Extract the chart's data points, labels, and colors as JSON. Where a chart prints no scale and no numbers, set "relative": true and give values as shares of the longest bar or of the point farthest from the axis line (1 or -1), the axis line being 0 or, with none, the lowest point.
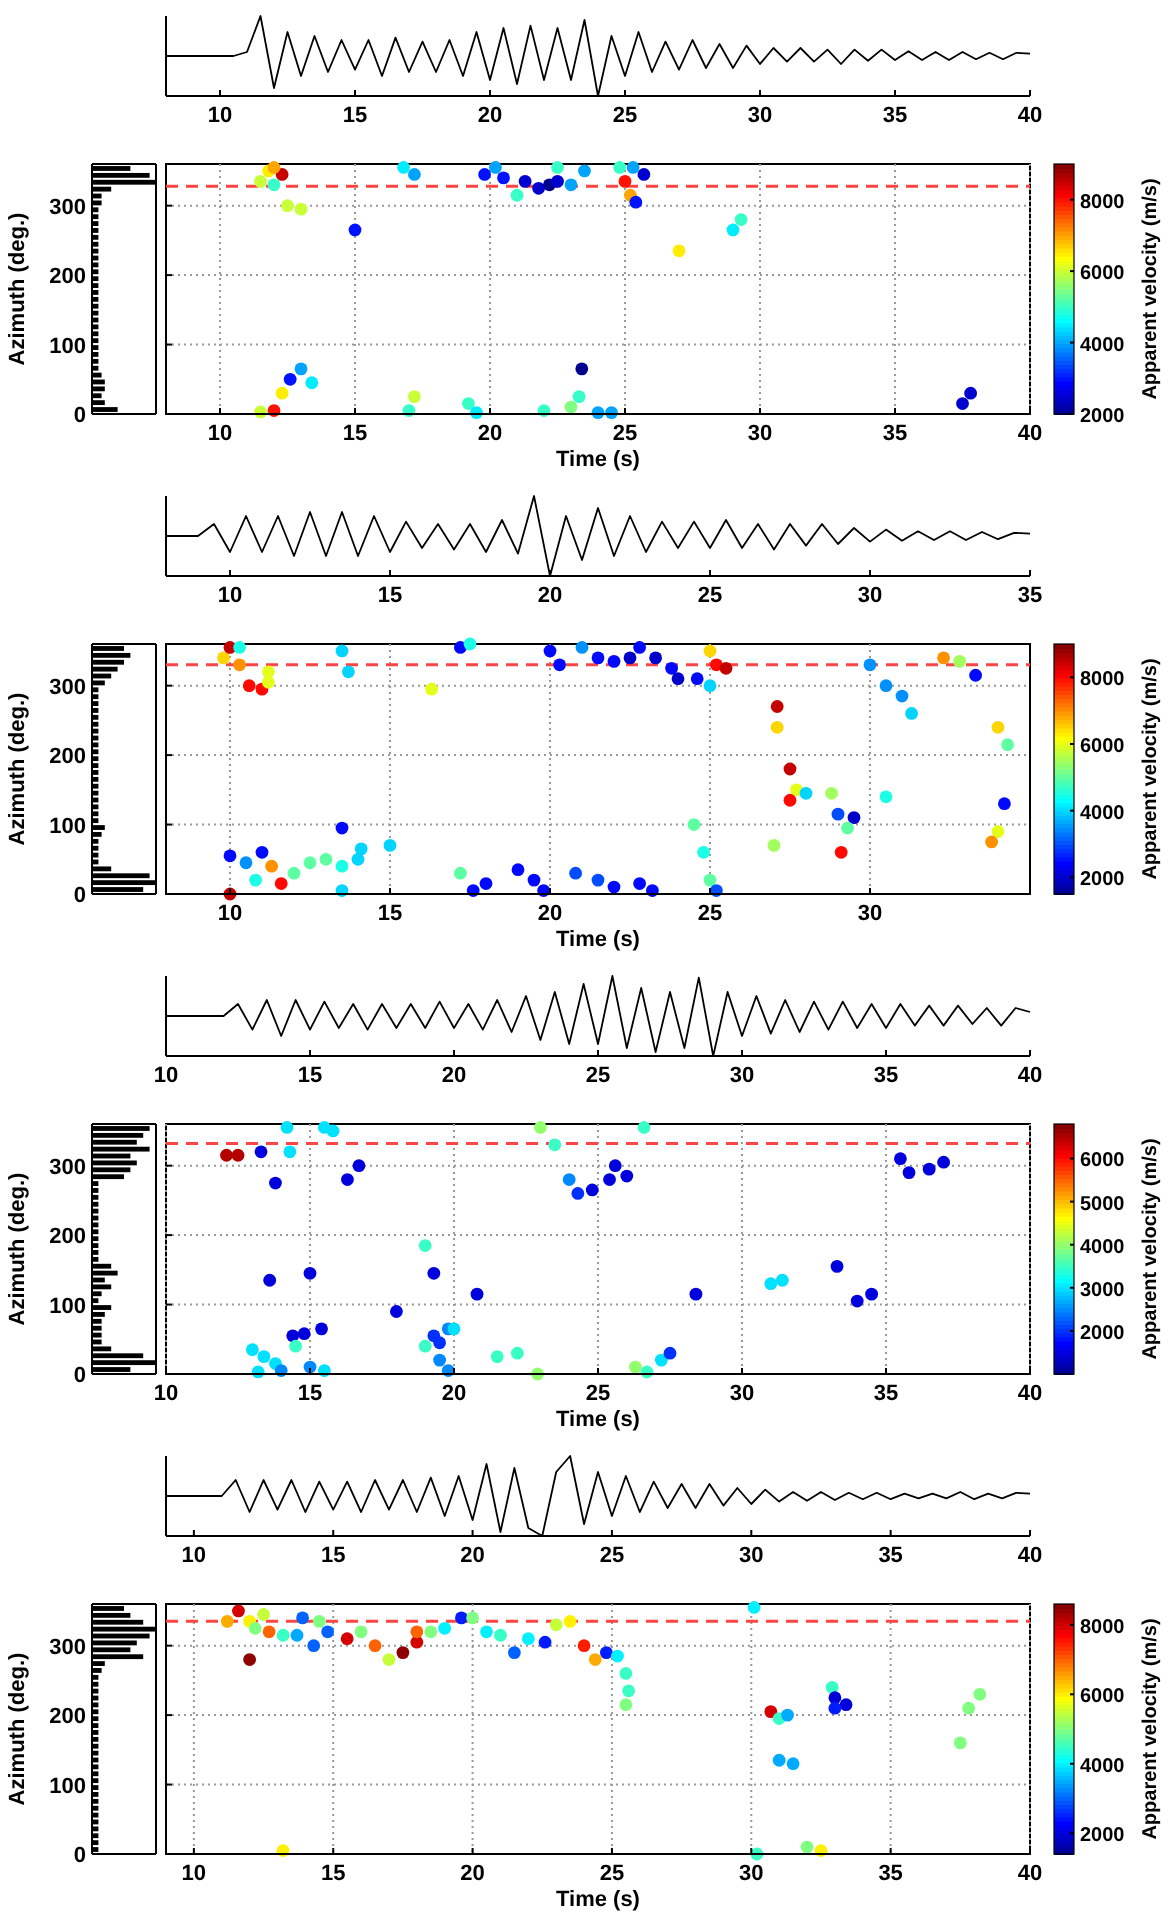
{
  "chart_data": [
    {
      "type": "line",
      "relative": true,
      "xlim": [
        8,
        40
      ],
      "xticks": [
        10,
        15,
        20,
        25,
        30,
        35,
        40
      ],
      "x": [
        8,
        9,
        10,
        10.5,
        11,
        11.5,
        12,
        12.5,
        13,
        13.5,
        14,
        14.5,
        15,
        15.5,
        16,
        16.5,
        17,
        17.5,
        18,
        18.5,
        19,
        19.5,
        20,
        20.5,
        21,
        21.5,
        22,
        22.5,
        23,
        23.5,
        24,
        24.5,
        25,
        25.5,
        26,
        26.5,
        27,
        27.5,
        28,
        28.5,
        29,
        29.5,
        30,
        30.5,
        31,
        31.5,
        32,
        32.5,
        33,
        33.5,
        34,
        34.5,
        35,
        35.5,
        36,
        36.5,
        37,
        37.5,
        38,
        38.5,
        39,
        39.5,
        40
      ],
      "series": [
        {
          "color": "#000000",
          "values": [
            0.5,
            0.5,
            0.5,
            0.5,
            0.55,
            1,
            0.1,
            0.8,
            0.25,
            0.75,
            0.3,
            0.7,
            0.33,
            0.7,
            0.25,
            0.73,
            0.3,
            0.68,
            0.3,
            0.7,
            0.25,
            0.8,
            0.2,
            0.85,
            0.15,
            0.88,
            0.2,
            0.85,
            0.2,
            0.95,
            0,
            0.75,
            0.25,
            0.8,
            0.3,
            0.68,
            0.33,
            0.7,
            0.35,
            0.65,
            0.35,
            0.63,
            0.4,
            0.6,
            0.43,
            0.6,
            0.43,
            0.58,
            0.4,
            0.58,
            0.44,
            0.58,
            0.45,
            0.56,
            0.45,
            0.55,
            0.45,
            0.55,
            0.46,
            0.54,
            0.46,
            0.54,
            0.53
          ]
        }
      ]
    },
    {
      "type": "bar",
      "orientation": "horizontal",
      "relative": true,
      "color": "#000000",
      "categories": [
        null,
        null,
        null,
        null,
        null,
        null,
        null,
        null,
        null,
        null,
        null,
        null,
        null,
        null,
        null,
        null,
        null,
        null,
        null,
        null,
        null,
        null,
        null,
        null,
        null,
        null,
        null,
        null,
        null,
        null,
        null,
        null,
        null,
        null,
        null,
        null
      ],
      "values": [
        0.6,
        0.9,
        1.0,
        0.3,
        0.15,
        0.15,
        0.1,
        0.1,
        0.1,
        0.1,
        0.1,
        0.1,
        0.1,
        0.1,
        0.1,
        0.1,
        0.1,
        0.1,
        0.1,
        0.1,
        0.1,
        0.1,
        0.1,
        0.1,
        0.1,
        0.1,
        0.1,
        0.1,
        0.1,
        0.1,
        0.15,
        0.2,
        0.2,
        0.15,
        0.2,
        0.4
      ]
    },
    {
      "type": "scatter",
      "xlabel": "Time (s)",
      "ylabel": "Azimuth (deg.)",
      "clabel": "Apparent velocity (m/s)",
      "grid": true,
      "marker": "circle",
      "xlim": [
        8,
        40
      ],
      "xticks": [
        10,
        15,
        20,
        25,
        30,
        35,
        40
      ],
      "ylim": [
        0,
        360
      ],
      "yticks": [
        0,
        100,
        200,
        300
      ],
      "clim": [
        2000,
        9000
      ],
      "cticks": [
        2000,
        4000,
        6000,
        8000
      ],
      "ref_lines": [
        {
          "axis": "y",
          "value": 328,
          "color": "#ff4444",
          "line_style": "dashed"
        }
      ],
      "x": [
        11.5,
        11.8,
        12.0,
        12.3,
        12.0,
        12.5,
        13.0,
        12.0,
        12.3,
        12.6,
        13.0,
        13.4,
        11.5,
        15.0,
        16.8,
        17.2,
        17.0,
        17.2,
        19.2,
        19.5,
        19.8,
        20.2,
        20.5,
        21.3,
        21.0,
        21.8,
        22.2,
        22.5,
        22.5,
        23.0,
        23.5,
        22.0,
        23.0,
        23.3,
        23.4,
        24.0,
        24.5,
        24.8,
        25.0,
        25.2,
        25.4,
        25.7,
        25.3,
        27.0,
        29.0,
        29.3,
        37.5,
        37.8
      ],
      "values": [
        335,
        350,
        330,
        345,
        355,
        300,
        295,
        5,
        30,
        50,
        65,
        45,
        3,
        265,
        355,
        345,
        5,
        25,
        15,
        2,
        345,
        355,
        340,
        335,
        315,
        325,
        330,
        335,
        355,
        330,
        350,
        5,
        10,
        25,
        65,
        2,
        2,
        355,
        335,
        315,
        305,
        345,
        355,
        235,
        265,
        280,
        15,
        30
      ],
      "cvalues": [
        6000,
        6500,
        5000,
        8500,
        7000,
        6000,
        6000,
        8000,
        6500,
        3000,
        4000,
        4500,
        6000,
        3000,
        4500,
        4000,
        5000,
        6000,
        5000,
        4500,
        3000,
        4000,
        3000,
        2500,
        5000,
        2500,
        2000,
        2500,
        5000,
        4000,
        4000,
        5000,
        5500,
        5000,
        2000,
        4000,
        4000,
        5000,
        8000,
        7000,
        3000,
        2500,
        4000,
        6500,
        4500,
        5000,
        2500,
        2500
      ]
    },
    {
      "type": "line",
      "relative": true,
      "xlim": [
        8,
        35
      ],
      "xticks": [
        10,
        15,
        20,
        25,
        30,
        35
      ],
      "x": [
        8,
        9,
        9.5,
        10,
        10.5,
        11,
        11.5,
        12,
        12.5,
        13,
        13.5,
        14,
        14.5,
        15,
        15.5,
        16,
        16.5,
        17,
        17.5,
        18,
        18.5,
        19,
        19.5,
        20,
        20.5,
        21,
        21.5,
        22,
        22.5,
        23,
        23.5,
        24,
        24.5,
        25,
        25.5,
        26,
        26.5,
        27,
        27.5,
        28,
        28.5,
        29,
        29.5,
        30,
        30.5,
        31,
        31.5,
        32,
        32.5,
        33,
        33.5,
        34,
        34.5,
        35
      ],
      "series": [
        {
          "color": "#000000",
          "values": [
            0.5,
            0.5,
            0.65,
            0.3,
            0.75,
            0.3,
            0.75,
            0.25,
            0.8,
            0.25,
            0.8,
            0.25,
            0.75,
            0.3,
            0.68,
            0.35,
            0.65,
            0.33,
            0.65,
            0.3,
            0.7,
            0.28,
            1,
            0,
            0.75,
            0.2,
            0.85,
            0.25,
            0.75,
            0.3,
            0.68,
            0.35,
            0.68,
            0.35,
            0.7,
            0.35,
            0.65,
            0.33,
            0.65,
            0.38,
            0.65,
            0.4,
            0.6,
            0.43,
            0.58,
            0.44,
            0.56,
            0.45,
            0.56,
            0.45,
            0.55,
            0.46,
            0.54,
            0.53
          ]
        }
      ]
    },
    {
      "type": "bar",
      "orientation": "horizontal",
      "relative": true,
      "color": "#000000",
      "categories": [
        null,
        null,
        null,
        null,
        null,
        null,
        null,
        null,
        null,
        null,
        null,
        null,
        null,
        null,
        null,
        null,
        null,
        null,
        null,
        null,
        null,
        null,
        null,
        null,
        null,
        null,
        null,
        null,
        null,
        null,
        null,
        null,
        null,
        null,
        null,
        null
      ],
      "values": [
        0.5,
        0.6,
        0.5,
        0.4,
        0.3,
        0.2,
        0.1,
        0.1,
        0.1,
        0.1,
        0.1,
        0.1,
        0.1,
        0.1,
        0.1,
        0.1,
        0.1,
        0.1,
        0.1,
        0.1,
        0.1,
        0.1,
        0.1,
        0.1,
        0.1,
        0.1,
        0.2,
        0.15,
        0.1,
        0.1,
        0.1,
        0.1,
        0.3,
        0.9,
        1.0,
        0.8
      ]
    },
    {
      "type": "scatter",
      "xlabel": "Time (s)",
      "ylabel": "Azimuth (deg.)",
      "clabel": "Apparent velocity (m/s)",
      "grid": true,
      "marker": "circle",
      "xlim": [
        8,
        35
      ],
      "xticks": [
        10,
        15,
        20,
        25,
        30
      ],
      "ylim": [
        0,
        360
      ],
      "yticks": [
        0,
        100,
        200,
        300
      ],
      "clim": [
        1500,
        9000
      ],
      "cticks": [
        2000,
        4000,
        6000,
        8000
      ],
      "ref_lines": [
        {
          "axis": "y",
          "value": 330,
          "color": "#ff4444",
          "line_style": "dashed"
        }
      ],
      "x": [
        9.8,
        10.0,
        10.3,
        10.6,
        11.0,
        11.2,
        11.2,
        10.3,
        10.0,
        10.0,
        10.5,
        10.8,
        11.0,
        11.3,
        11.6,
        12.0,
        12.5,
        13.0,
        13.5,
        14.0,
        14.1,
        13.5,
        13.5,
        15.0,
        13.5,
        13.7,
        16.3,
        17.2,
        17.5,
        17.2,
        17.6,
        18.0,
        19.0,
        19.5,
        19.8,
        20.0,
        20.3,
        20.8,
        21.5,
        22.0,
        22.8,
        23.2,
        21.0,
        21.5,
        22.0,
        22.5,
        22.8,
        23.3,
        23.8,
        24.0,
        24.6,
        24.5,
        24.8,
        25.0,
        25.2,
        25.0,
        25.2,
        25.5,
        25.0,
        27.1,
        27.1,
        27.0,
        27.5,
        27.7,
        27.5,
        28.0,
        28.8,
        29.0,
        29.5,
        29.3,
        29.1,
        30.0,
        30.5,
        31.0,
        31.3,
        30.5,
        32.3,
        32.8,
        33.3,
        34.0,
        34.3,
        34.2,
        34.0,
        33.8
      ],
      "values": [
        340,
        355,
        330,
        300,
        295,
        320,
        305,
        355,
        0,
        55,
        45,
        20,
        60,
        40,
        15,
        30,
        45,
        50,
        40,
        50,
        65,
        5,
        95,
        70,
        350,
        320,
        295,
        355,
        360,
        30,
        5,
        15,
        35,
        20,
        5,
        350,
        330,
        30,
        20,
        10,
        15,
        5,
        355,
        340,
        335,
        340,
        355,
        340,
        325,
        310,
        310,
        100,
        60,
        20,
        5,
        350,
        330,
        325,
        300,
        270,
        240,
        70,
        180,
        150,
        135,
        145,
        145,
        115,
        110,
        95,
        60,
        330,
        300,
        285,
        260,
        140,
        340,
        335,
        315,
        240,
        215,
        130,
        90,
        75
      ],
      "cvalues": [
        6500,
        8500,
        7000,
        8000,
        8000,
        6000,
        6000,
        4500,
        8500,
        2500,
        3500,
        4500,
        2500,
        7000,
        8000,
        5000,
        5000,
        5000,
        4500,
        4000,
        4000,
        4000,
        2500,
        4000,
        4000,
        4000,
        6000,
        2500,
        4500,
        5000,
        2500,
        2500,
        2500,
        2500,
        2500,
        2500,
        2500,
        3000,
        3000,
        2500,
        2500,
        2500,
        3500,
        2500,
        2500,
        2000,
        2500,
        2000,
        2500,
        2000,
        2500,
        5000,
        4500,
        5000,
        3000,
        6500,
        8000,
        8500,
        4000,
        8500,
        6500,
        5500,
        8500,
        6000,
        8000,
        4000,
        5500,
        3000,
        2000,
        5000,
        8000,
        3500,
        3500,
        3500,
        4000,
        4500,
        7000,
        5500,
        2500,
        6500,
        5000,
        2500,
        6000,
        7000
      ]
    },
    {
      "type": "line",
      "relative": true,
      "xlim": [
        10,
        40
      ],
      "xticks": [
        10,
        15,
        20,
        25,
        30,
        35,
        40
      ],
      "x": [
        10,
        11,
        12,
        12.5,
        13,
        13.5,
        14,
        14.5,
        15,
        15.5,
        16,
        16.5,
        17,
        17.5,
        18,
        18.5,
        19,
        19.5,
        20,
        20.5,
        21,
        21.5,
        22,
        22.5,
        23,
        23.5,
        24,
        24.5,
        25,
        25.5,
        26,
        26.5,
        27,
        27.5,
        28,
        28.5,
        29,
        29.5,
        30,
        30.5,
        31,
        31.5,
        32,
        32.5,
        33,
        33.5,
        34,
        34.5,
        35,
        35.5,
        36,
        36.5,
        37,
        37.5,
        38,
        38.5,
        39,
        39.5,
        40
      ],
      "series": [
        {
          "color": "#000000",
          "values": [
            0.5,
            0.5,
            0.5,
            0.65,
            0.33,
            0.7,
            0.25,
            0.7,
            0.33,
            0.68,
            0.35,
            0.65,
            0.33,
            0.65,
            0.35,
            0.65,
            0.35,
            0.68,
            0.35,
            0.65,
            0.33,
            0.7,
            0.3,
            0.75,
            0.2,
            0.8,
            0.15,
            0.9,
            0.15,
            1,
            0.1,
            0.85,
            0.05,
            0.8,
            0.1,
            0.98,
            0,
            0.8,
            0.25,
            0.75,
            0.28,
            0.7,
            0.3,
            0.68,
            0.33,
            0.68,
            0.35,
            0.65,
            0.35,
            0.65,
            0.38,
            0.63,
            0.38,
            0.63,
            0.4,
            0.6,
            0.38,
            0.6,
            0.55
          ]
        }
      ]
    },
    {
      "type": "bar",
      "orientation": "horizontal",
      "relative": true,
      "color": "#000000",
      "categories": [
        null,
        null,
        null,
        null,
        null,
        null,
        null,
        null,
        null,
        null,
        null,
        null,
        null,
        null,
        null,
        null,
        null,
        null,
        null,
        null,
        null,
        null,
        null,
        null,
        null,
        null,
        null,
        null,
        null,
        null,
        null,
        null,
        null,
        null,
        null,
        null
      ],
      "values": [
        0.9,
        0.8,
        0.7,
        0.9,
        0.6,
        0.7,
        0.6,
        0.5,
        0.1,
        0.1,
        0.1,
        0.1,
        0.1,
        0.1,
        0.1,
        0.1,
        0.1,
        0.1,
        0.1,
        0.1,
        0.3,
        0.4,
        0.2,
        0.3,
        0.15,
        0.1,
        0.3,
        0.2,
        0.15,
        0.15,
        0.15,
        0.15,
        0.3,
        0.8,
        1.0,
        0.6
      ]
    },
    {
      "type": "scatter",
      "xlabel": "Time (s)",
      "ylabel": "Azimuth (deg.)",
      "clabel": "Apparent velocity (m/s)",
      "grid": true,
      "marker": "circle",
      "xlim": [
        10,
        40
      ],
      "xticks": [
        10,
        15,
        20,
        25,
        30,
        35,
        40
      ],
      "ylim": [
        0,
        360
      ],
      "yticks": [
        0,
        100,
        200,
        300
      ],
      "clim": [
        1000,
        6800
      ],
      "cticks": [
        2000,
        3000,
        4000,
        5000,
        6000
      ],
      "ref_lines": [
        {
          "axis": "y",
          "value": 332,
          "color": "#ff4444",
          "line_style": "dashed"
        }
      ],
      "x": [
        12.1,
        12.5,
        13.3,
        13.8,
        14.2,
        14.3,
        15.5,
        15.8,
        16.3,
        16.7,
        13.6,
        15.0,
        15.4,
        14.4,
        14.8,
        13.0,
        13.4,
        13.8,
        14.0,
        13.2,
        14.5,
        15.0,
        15.5,
        18.0,
        19.0,
        19.3,
        19.0,
        19.3,
        19.5,
        19.8,
        20.0,
        19.5,
        19.8,
        20.8,
        21.5,
        22.2,
        22.9,
        23.0,
        23.5,
        24.0,
        24.3,
        24.8,
        25.4,
        25.6,
        26.0,
        26.6,
        26.3,
        26.7,
        27.2,
        27.5,
        28.4,
        31.0,
        31.4,
        33.3,
        34.0,
        34.5,
        35.5,
        35.8,
        36.5,
        37.0
      ],
      "values": [
        315,
        315,
        320,
        275,
        355,
        320,
        355,
        350,
        280,
        300,
        135,
        145,
        65,
        55,
        58,
        35,
        25,
        15,
        5,
        3,
        40,
        10,
        5,
        90,
        185,
        145,
        40,
        55,
        45,
        65,
        65,
        20,
        5,
        115,
        25,
        30,
        0,
        355,
        330,
        280,
        260,
        265,
        280,
        300,
        285,
        355,
        10,
        3,
        20,
        30,
        115,
        130,
        135,
        155,
        105,
        115,
        310,
        290,
        295,
        305
      ],
      "cvalues": [
        6500,
        6500,
        1500,
        1500,
        3000,
        3000,
        3000,
        3000,
        1500,
        1500,
        1500,
        1500,
        1500,
        1500,
        1500,
        3000,
        3000,
        3000,
        2500,
        3000,
        3500,
        2500,
        3000,
        1500,
        3500,
        1500,
        3500,
        2000,
        2000,
        2500,
        3000,
        2500,
        2500,
        1500,
        3500,
        3500,
        4000,
        4000,
        3500,
        2500,
        2000,
        1500,
        1500,
        1500,
        1500,
        3500,
        4000,
        3500,
        3000,
        2000,
        1500,
        3000,
        3000,
        1500,
        1500,
        1500,
        1500,
        1500,
        1500,
        1500
      ]
    },
    {
      "type": "line",
      "relative": true,
      "xlim": [
        9,
        40
      ],
      "xticks": [
        10,
        15,
        20,
        25,
        30,
        35,
        40
      ],
      "x": [
        9,
        10,
        11,
        11.5,
        12,
        12.5,
        13,
        13.5,
        14,
        14.5,
        15,
        15.5,
        16,
        16.5,
        17,
        17.5,
        18,
        18.5,
        19,
        19.5,
        20,
        20.5,
        21,
        21.5,
        22,
        22.5,
        23,
        23.5,
        24,
        24.5,
        25,
        25.5,
        26,
        26.5,
        27,
        27.5,
        28,
        28.5,
        29,
        29.5,
        30,
        30.5,
        31,
        31.5,
        32,
        32.5,
        33,
        33.5,
        34,
        34.5,
        35,
        35.5,
        36,
        36.5,
        37,
        37.5,
        38,
        38.5,
        39,
        39.5,
        40
      ],
      "series": [
        {
          "color": "#000000",
          "values": [
            0.5,
            0.5,
            0.5,
            0.7,
            0.3,
            0.7,
            0.33,
            0.7,
            0.3,
            0.68,
            0.33,
            0.68,
            0.3,
            0.7,
            0.33,
            0.7,
            0.3,
            0.73,
            0.25,
            0.75,
            0.2,
            0.9,
            0.05,
            0.85,
            0.1,
            0,
            0.8,
            1,
            0.15,
            0.8,
            0.25,
            0.75,
            0.3,
            0.68,
            0.35,
            0.65,
            0.35,
            0.65,
            0.38,
            0.6,
            0.4,
            0.58,
            0.43,
            0.55,
            0.44,
            0.55,
            0.45,
            0.54,
            0.46,
            0.54,
            0.46,
            0.53,
            0.47,
            0.53,
            0.47,
            0.55,
            0.46,
            0.53,
            0.47,
            0.54,
            0.53
          ]
        }
      ]
    },
    {
      "type": "bar",
      "orientation": "horizontal",
      "relative": true,
      "color": "#000000",
      "categories": [
        null,
        null,
        null,
        null,
        null,
        null,
        null,
        null,
        null,
        null,
        null,
        null,
        null,
        null,
        null,
        null,
        null,
        null,
        null,
        null,
        null,
        null,
        null,
        null,
        null,
        null,
        null,
        null,
        null,
        null,
        null,
        null,
        null,
        null,
        null,
        null
      ],
      "values": [
        0.5,
        0.6,
        0.8,
        1.0,
        0.9,
        0.7,
        0.6,
        0.8,
        0.2,
        0.15,
        0.1,
        0.1,
        0.1,
        0.1,
        0.1,
        0.1,
        0.1,
        0.1,
        0.1,
        0.1,
        0.1,
        0.1,
        0.1,
        0.1,
        0.1,
        0.1,
        0.1,
        0.1,
        0.1,
        0.1,
        0.1,
        0.1,
        0.1,
        0.1,
        0.1,
        0.1
      ]
    },
    {
      "type": "scatter",
      "xlabel": "Time (s)",
      "ylabel": "Azimuth (deg.)",
      "clabel": "Apparent velocity (m/s)",
      "grid": true,
      "marker": "circle",
      "xlim": [
        9,
        40
      ],
      "xticks": [
        10,
        15,
        20,
        25,
        30,
        35,
        40
      ],
      "ylim": [
        0,
        360
      ],
      "yticks": [
        0,
        100,
        200,
        300
      ],
      "clim": [
        1400,
        8600
      ],
      "cticks": [
        2000,
        4000,
        6000,
        8000
      ],
      "ref_lines": [
        {
          "axis": "y",
          "value": 335,
          "color": "#ff4444",
          "line_style": "dashed"
        }
      ],
      "x": [
        11.2,
        11.6,
        12.0,
        12.5,
        12.2,
        12.0,
        12.7,
        13.2,
        13.7,
        13.9,
        14.3,
        14.8,
        14.5,
        15.5,
        16.0,
        16.5,
        17.0,
        17.5,
        18.0,
        18.0,
        18.5,
        19.0,
        19.6,
        20.0,
        20.5,
        21.0,
        21.5,
        22.0,
        22.6,
        23.0,
        23.5,
        24.0,
        24.4,
        24.8,
        25.2,
        25.5,
        25.6,
        25.5,
        13.2,
        30.1,
        30.2,
        30.7,
        31.0,
        31.3,
        31.0,
        31.5,
        32.0,
        32.5,
        32.9,
        33.0,
        33.4,
        33.0,
        37.8,
        38.2,
        37.5
      ],
      "values": [
        335,
        350,
        335,
        345,
        325,
        280,
        320,
        315,
        315,
        340,
        300,
        320,
        335,
        310,
        320,
        300,
        280,
        290,
        305,
        320,
        320,
        325,
        340,
        340,
        320,
        315,
        290,
        310,
        305,
        330,
        335,
        300,
        280,
        290,
        285,
        260,
        235,
        215,
        5,
        355,
        0,
        205,
        195,
        200,
        135,
        130,
        10,
        5,
        240,
        225,
        215,
        210,
        210,
        230,
        160
      ],
      "cvalues": [
        6500,
        8000,
        6000,
        5500,
        5000,
        8500,
        7000,
        4500,
        3500,
        3000,
        3000,
        3000,
        5000,
        8000,
        5000,
        7000,
        5500,
        8500,
        8000,
        7000,
        5000,
        4000,
        2500,
        5000,
        4000,
        4500,
        3000,
        4000,
        2500,
        5500,
        6000,
        7500,
        6500,
        2500,
        4000,
        4500,
        4500,
        5000,
        6000,
        4000,
        4500,
        8000,
        4500,
        3500,
        3500,
        3500,
        5000,
        6000,
        4500,
        2000,
        2000,
        2500,
        5000,
        5000,
        5000
      ]
    }
  ]
}
